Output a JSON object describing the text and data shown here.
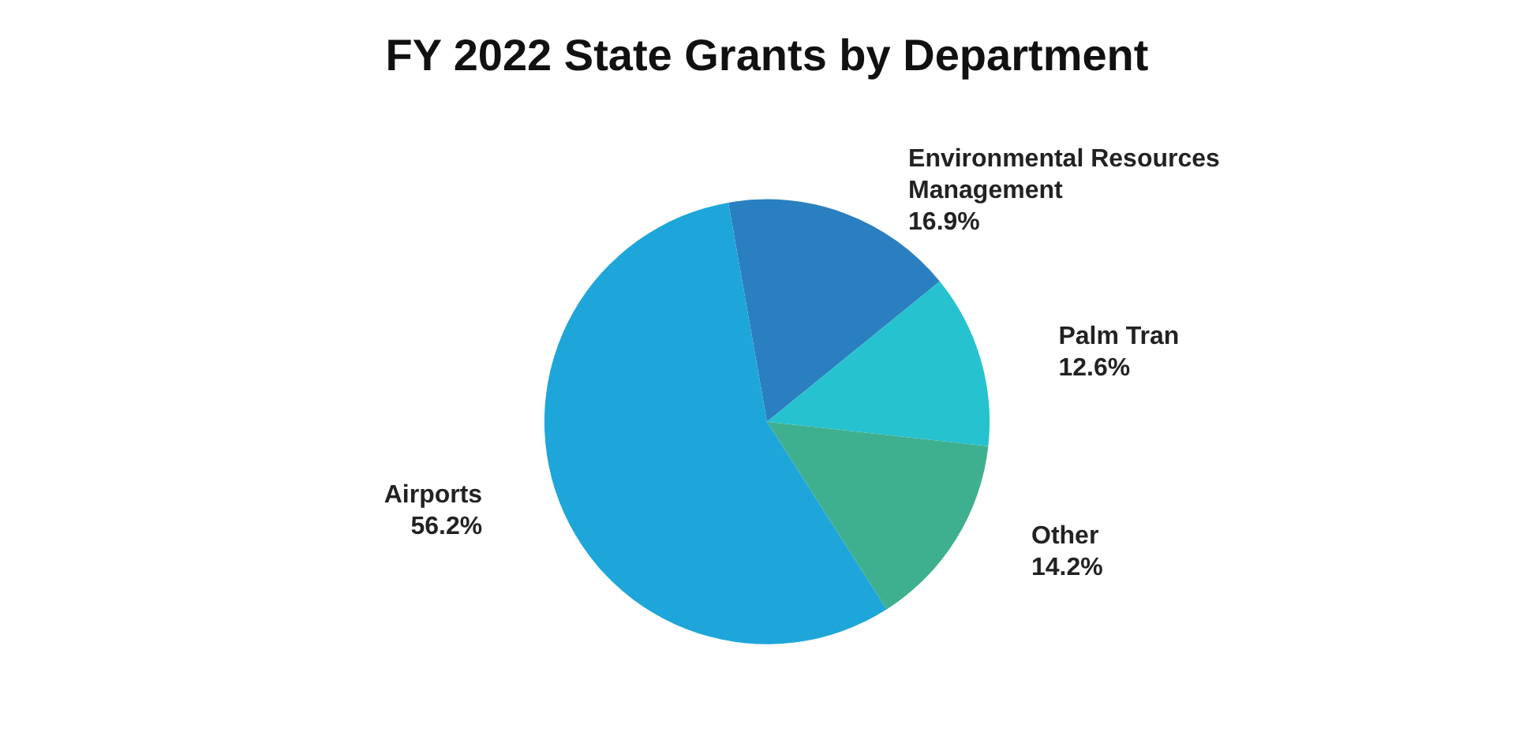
{
  "chart_data": {
    "type": "pie",
    "title": "FY 2022 State Grants by Department",
    "categories": [
      "Environmental Resources Management",
      "Palm Tran",
      "Other",
      "Airports"
    ],
    "values": [
      16.9,
      12.6,
      14.2,
      56.2
    ],
    "value_labels": [
      "16.9%",
      "12.6%",
      "14.2%",
      "56.2%"
    ],
    "colors": [
      "#2a7fc0",
      "#26c2d0",
      "#3fb08f",
      "#1ea6da"
    ],
    "legend": false
  }
}
